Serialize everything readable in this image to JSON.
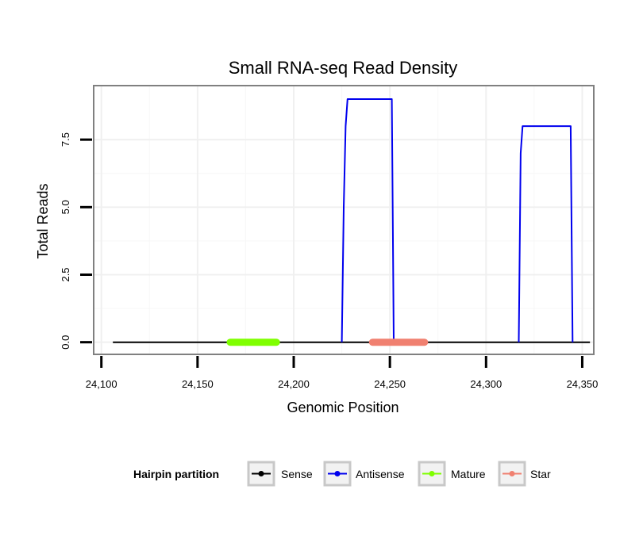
{
  "chart_data": {
    "type": "line",
    "title": "Small RNA-seq Read Density",
    "xlabel": "Genomic Position",
    "ylabel": "Total Reads",
    "xlim": [
      24096,
      24356
    ],
    "ylim": [
      -0.45,
      9.5
    ],
    "x_ticks": [
      24100,
      24150,
      24200,
      24250,
      24300,
      24350
    ],
    "x_tick_labels": [
      "24,100",
      "24,150",
      "24,200",
      "24,250",
      "24,300",
      "24,350"
    ],
    "y_ticks": [
      0,
      2.5,
      5,
      7.5
    ],
    "y_tick_labels": [
      "0.0",
      "2.5",
      "5.0",
      "7.5"
    ],
    "grid": true,
    "legend_position": "bottom",
    "legend_title": "Hairpin partition",
    "series": [
      {
        "name": "Sense",
        "color": "#000000",
        "x": [
          24106,
          24354
        ],
        "y": [
          0,
          0
        ]
      },
      {
        "name": "Antisense",
        "color": "#0000ee",
        "x": [
          24225,
          24226,
          24227,
          24228,
          24251,
          24252
        ],
        "y": [
          0,
          5,
          8,
          9,
          9,
          0
        ]
      },
      {
        "name": "Antisense",
        "color": "#0000ee",
        "x": [
          24317,
          24318,
          24319,
          24344,
          24345
        ],
        "y": [
          0,
          7,
          8,
          8,
          0
        ]
      },
      {
        "name": "Mature",
        "color": "#7fff00",
        "x": [
          24167,
          24191
        ],
        "y": [
          0,
          0
        ]
      },
      {
        "name": "Star",
        "color": "#f08070",
        "x": [
          24241,
          24268
        ],
        "y": [
          0,
          0
        ]
      }
    ],
    "legend": [
      {
        "label": "Sense",
        "color": "#000000"
      },
      {
        "label": "Antisense",
        "color": "#0000ee"
      },
      {
        "label": "Mature",
        "color": "#7fff00"
      },
      {
        "label": "Star",
        "color": "#f08070"
      }
    ]
  }
}
